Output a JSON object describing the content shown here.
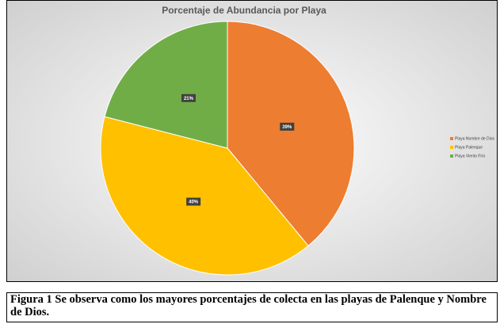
{
  "chart_data": {
    "type": "pie",
    "title": "Porcentaje de Abundancia por Playa",
    "categories": [
      "Playa Nombre de Dios",
      "Playa Palenque",
      "Playa Viento Frío"
    ],
    "values": [
      39,
      40,
      21
    ],
    "value_labels": [
      "39%",
      "40%",
      "21%"
    ],
    "colors": [
      "#ED7D31",
      "#FFC000",
      "#70AD47"
    ],
    "legend": "right"
  },
  "caption": "Figura 1 Se observa como los mayores porcentajes de colecta en las playas de Palenque y Nombre de Dios."
}
